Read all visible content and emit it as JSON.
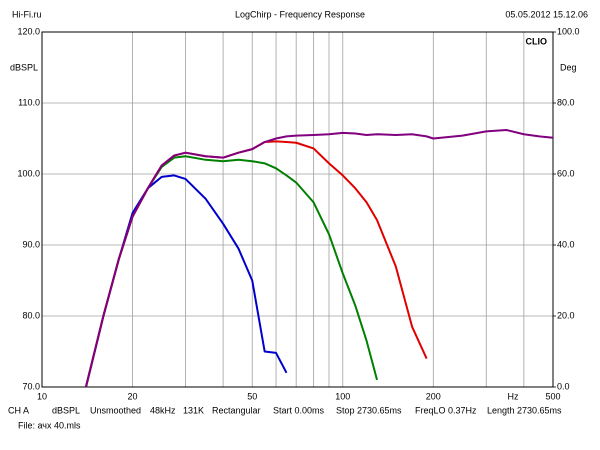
{
  "chart_data": {
    "type": "line",
    "site": "Hi-Fi.ru",
    "title": "LogChirp - Frequency Response",
    "date": "05.05.2012 15.12.06",
    "brand": "CLIO",
    "ylabel": "dBSPL",
    "y2label": "Deg",
    "x_unit": "Hz",
    "log_x": true,
    "grid": true,
    "xlim": [
      10,
      500
    ],
    "xticks": [
      10,
      20,
      50,
      100,
      200,
      500
    ],
    "x_minor_grid": [
      30,
      40,
      60,
      70,
      80,
      90,
      300,
      400
    ],
    "ylim": [
      70,
      120
    ],
    "yticks": [
      {
        "value": 70,
        "label": "70.0"
      },
      {
        "value": 80,
        "label": "80.0"
      },
      {
        "value": 90,
        "label": "90.0"
      },
      {
        "value": 100,
        "label": "100.0"
      },
      {
        "value": 110,
        "label": "110.0"
      },
      {
        "value": 120,
        "label": "120.0"
      }
    ],
    "y2lim": [
      0,
      100
    ],
    "y2ticks": [
      {
        "value": 0,
        "label": "0.0"
      },
      {
        "value": 20,
        "label": "20.0"
      },
      {
        "value": 40,
        "label": "40.0"
      },
      {
        "value": 60,
        "label": "60.0"
      },
      {
        "value": 80,
        "label": "80.0"
      },
      {
        "value": 100,
        "label": "100.0"
      }
    ],
    "x": [
      14,
      16,
      18,
      20,
      22.5,
      25,
      27.5,
      30,
      35,
      40,
      45,
      50,
      55,
      60,
      65,
      70,
      80,
      90,
      100,
      110,
      120,
      130,
      150,
      170,
      190,
      200,
      250,
      300,
      350,
      400,
      450,
      500
    ],
    "series": [
      {
        "color": "#0000cc",
        "values": [
          70,
          80,
          88,
          94.5,
          98,
          99.6,
          99.8,
          99.3,
          96.5,
          93,
          89.5,
          85,
          75,
          74.8,
          72,
          null,
          null,
          null,
          null,
          null,
          null,
          null,
          null,
          null,
          null,
          null,
          null,
          null,
          null,
          null,
          null,
          null
        ]
      },
      {
        "color": "#008000",
        "values": [
          70,
          80,
          88,
          94,
          98,
          101,
          102.3,
          102.5,
          102,
          101.8,
          102,
          101.8,
          101.5,
          100.8,
          99.8,
          98.8,
          96,
          91.5,
          86,
          81.5,
          76.5,
          71,
          null,
          null,
          null,
          null,
          null,
          null,
          null,
          null,
          null,
          null
        ]
      },
      {
        "color": "#e00000",
        "values": [
          70,
          80,
          88,
          94,
          98,
          101.2,
          102.6,
          103,
          102.5,
          102.3,
          103,
          103.5,
          104.5,
          104.6,
          104.5,
          104.4,
          103.6,
          101.5,
          99.8,
          98,
          96,
          93.5,
          87,
          78.5,
          74,
          null,
          null,
          null,
          null,
          null,
          null,
          null
        ]
      },
      {
        "color": "#800080",
        "values": [
          70,
          80,
          88,
          94,
          98,
          101.2,
          102.6,
          103,
          102.5,
          102.3,
          103,
          103.5,
          104.5,
          105,
          105.3,
          105.4,
          105.5,
          105.6,
          105.8,
          105.7,
          105.5,
          105.6,
          105.5,
          105.6,
          105.3,
          105,
          105.4,
          106,
          106.2,
          105.6,
          105.3,
          105.1
        ]
      }
    ],
    "footer": [
      "CH A",
      "dBSPL",
      "Unsmoothed",
      "48kHz",
      "131K",
      "Rectangular",
      "Start 0.00ms",
      "Stop 2730.65ms",
      "FreqLO 0.37Hz",
      "Length 2730.65ms"
    ],
    "file": "File: ачх 40.mls"
  }
}
